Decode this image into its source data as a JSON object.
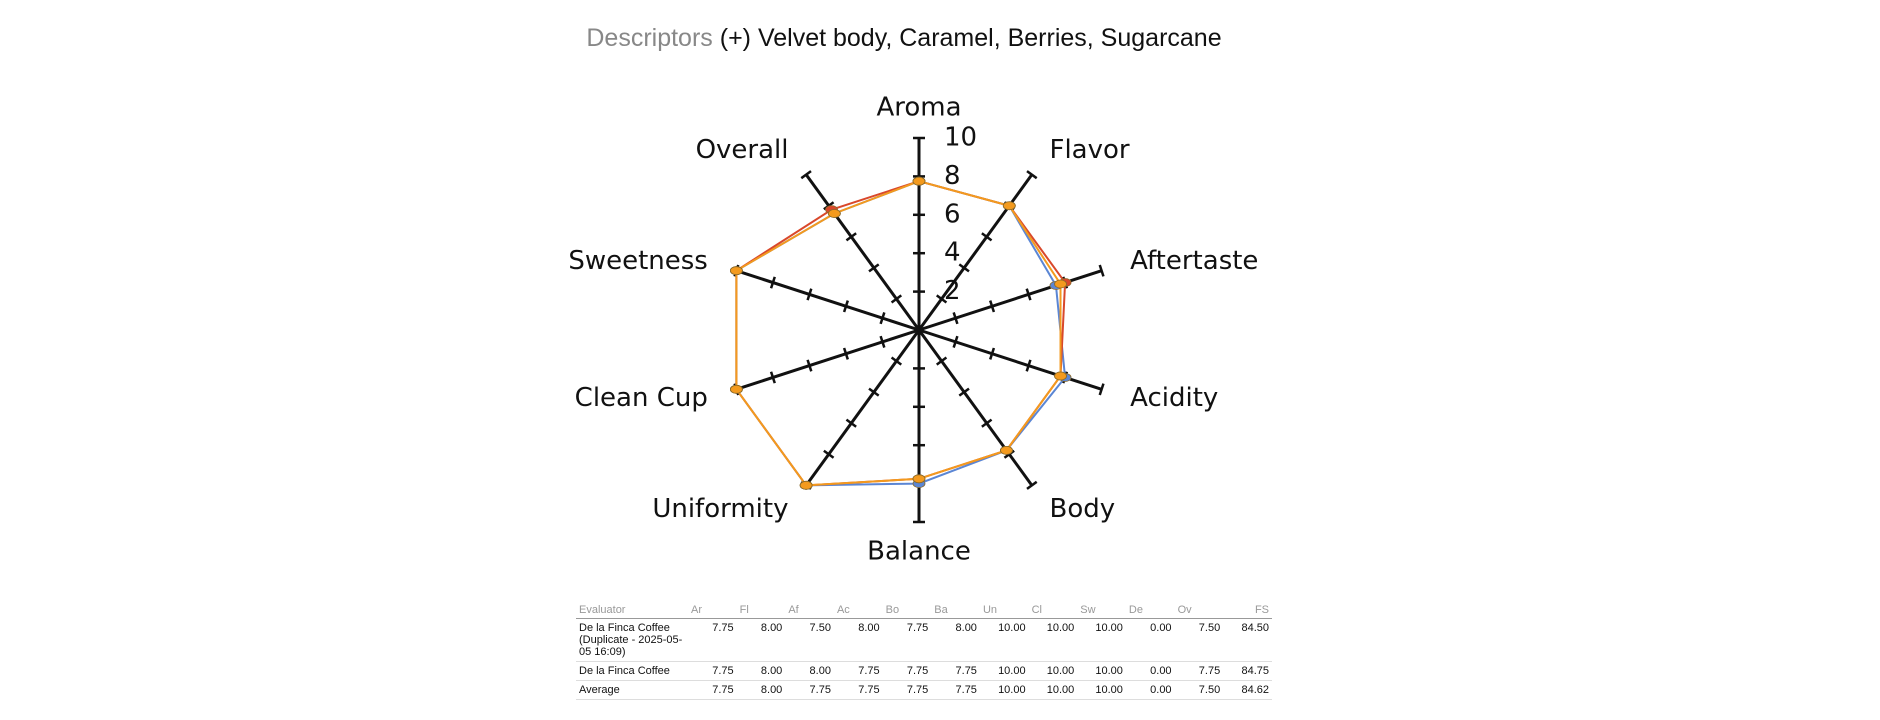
{
  "descriptors": {
    "label": "Descriptors",
    "text": "(+) Velvet body, Caramel, Berries, Sugarcane"
  },
  "chart_data": {
    "type": "radar",
    "categories": [
      "Aroma",
      "Flavor",
      "Aftertaste",
      "Acidity",
      "Body",
      "Balance",
      "Uniformity",
      "Clean Cup",
      "Sweetness",
      "Overall"
    ],
    "series": [
      {
        "color": "#5b86d4",
        "values": [
          7.75,
          8,
          7.5,
          8,
          7.75,
          8,
          10,
          10,
          10,
          7.5
        ]
      },
      {
        "color": "#d9482b",
        "values": [
          7.75,
          8,
          8,
          7.75,
          7.75,
          7.75,
          10,
          10,
          10,
          7.75
        ]
      },
      {
        "color": "#f39a1e",
        "values": [
          7.75,
          8,
          7.75,
          7.75,
          7.75,
          7.75,
          10,
          10,
          10,
          7.5
        ]
      }
    ],
    "rlim": [
      0,
      10
    ],
    "rticks": [
      2,
      4,
      6,
      8,
      10
    ]
  },
  "table": {
    "header": [
      "Evaluator",
      "Ar",
      "Fl",
      "Af",
      "Ac",
      "Bo",
      "Ba",
      "Un",
      "Cl",
      "Sw",
      "De",
      "Ov",
      "FS"
    ],
    "rows": [
      [
        "De la Finca Coffee (Duplicate - 2025-05-05 16:09)",
        "7.75",
        "8.00",
        "7.50",
        "8.00",
        "7.75",
        "8.00",
        "10.00",
        "10.00",
        "10.00",
        "0.00",
        "7.50",
        "84.50"
      ],
      [
        "De la Finca Coffee",
        "7.75",
        "8.00",
        "8.00",
        "7.75",
        "7.75",
        "7.75",
        "10.00",
        "10.00",
        "10.00",
        "0.00",
        "7.75",
        "84.75"
      ],
      [
        "Average",
        "7.75",
        "8.00",
        "7.75",
        "7.75",
        "7.75",
        "7.75",
        "10.00",
        "10.00",
        "10.00",
        "0.00",
        "7.50",
        "84.62"
      ]
    ]
  }
}
